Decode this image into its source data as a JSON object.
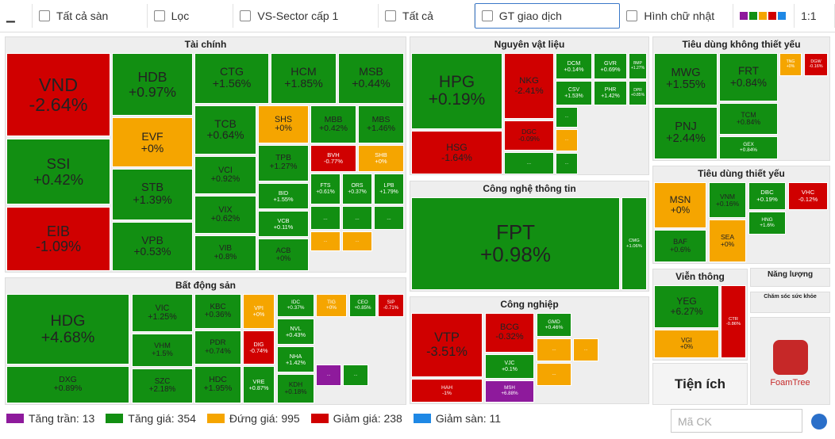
{
  "toolbar": {
    "items": [
      "Tất cả sàn",
      "Lọc",
      "VS-Sector cấp 1",
      "Tất cả",
      "GT giao dịch",
      "Hình chữ nhật",
      "1:1"
    ]
  },
  "sectors": [
    {
      "title": "Tài chính",
      "tiles": [
        {
          "ticker": "VND",
          "change": "-2.64%",
          "color": "#d00000"
        },
        {
          "ticker": "SSI",
          "change": "+0.42%",
          "color": "#128f12"
        },
        {
          "ticker": "EIB",
          "change": "-1.09%",
          "color": "#d00000"
        },
        {
          "ticker": "HDB",
          "change": "+0.97%",
          "color": "#128f12"
        },
        {
          "ticker": "EVF",
          "change": "+0%",
          "color": "#f5a500"
        },
        {
          "ticker": "STB",
          "change": "+1.39%",
          "color": "#128f12"
        },
        {
          "ticker": "VPB",
          "change": "+0.53%",
          "color": "#128f12"
        },
        {
          "ticker": "CTG",
          "change": "+1.56%",
          "color": "#128f12"
        },
        {
          "ticker": "HCM",
          "change": "+1.85%",
          "color": "#128f12"
        },
        {
          "ticker": "MSB",
          "change": "+0.44%",
          "color": "#128f12"
        },
        {
          "ticker": "TCB",
          "change": "+0.64%",
          "color": "#128f12"
        },
        {
          "ticker": "SHS",
          "change": "+0%",
          "color": "#f5a500"
        },
        {
          "ticker": "MBB",
          "change": "+0.42%",
          "color": "#128f12"
        },
        {
          "ticker": "MBS",
          "change": "+1.46%",
          "color": "#128f12"
        },
        {
          "ticker": "VCI",
          "change": "+0.92%",
          "color": "#128f12"
        },
        {
          "ticker": "VIX",
          "change": "+0.62%",
          "color": "#128f12"
        },
        {
          "ticker": "VIB",
          "change": "+0.8%",
          "color": "#128f12"
        },
        {
          "ticker": "TPB",
          "change": "+1.27%",
          "color": "#128f12"
        },
        {
          "ticker": "BVH",
          "change": "-0.77%",
          "color": "#d00000"
        },
        {
          "ticker": "SHB",
          "change": "+0%",
          "color": "#f5a500"
        },
        {
          "ticker": "BID",
          "change": "+1.55%",
          "color": "#128f12"
        },
        {
          "ticker": "VCB",
          "change": "+0.11%",
          "color": "#128f12"
        },
        {
          "ticker": "ACB",
          "change": "+0%",
          "color": "#128f12"
        },
        {
          "ticker": "FTS",
          "change": "+0.61%",
          "color": "#128f12"
        },
        {
          "ticker": "ORS",
          "change": "+0.37%",
          "color": "#128f12"
        },
        {
          "ticker": "LPB",
          "change": "+1.79%",
          "color": "#128f12"
        },
        {
          "ticker": "...",
          "color": "#128f12"
        },
        {
          "ticker": "...",
          "color": "#128f12"
        },
        {
          "ticker": "...",
          "color": "#128f12"
        },
        {
          "ticker": "...",
          "color": "#f5a500"
        },
        {
          "ticker": "...",
          "color": "#f5a500"
        }
      ]
    },
    {
      "title": "Nguyên vật liệu",
      "tiles": [
        {
          "ticker": "HPG",
          "change": "+0.19%",
          "color": "#128f12"
        },
        {
          "ticker": "HSG",
          "change": "-1.64%",
          "color": "#d00000"
        },
        {
          "ticker": "NKG",
          "change": "-2.41%",
          "color": "#d00000"
        },
        {
          "ticker": "DGC",
          "change": "-0.09%",
          "color": "#d00000"
        },
        {
          "ticker": "...",
          "color": "#128f12"
        },
        {
          "ticker": "DCM",
          "change": "+0.14%",
          "color": "#128f12"
        },
        {
          "ticker": "GVR",
          "change": "+0.69%",
          "color": "#128f12"
        },
        {
          "ticker": "BMP",
          "change": "+1.27%",
          "color": "#128f12"
        },
        {
          "ticker": "CSV",
          "change": "+1.53%",
          "color": "#128f12"
        },
        {
          "ticker": "PHR",
          "change": "+1.42%",
          "color": "#128f12"
        },
        {
          "ticker": "DPR",
          "change": "+0.85%",
          "color": "#128f12"
        },
        {
          "ticker": "...",
          "color": "#128f12"
        },
        {
          "ticker": "...",
          "color": "#f5a500"
        },
        {
          "ticker": "...",
          "color": "#128f12"
        }
      ]
    },
    {
      "title": "Công nghệ thông tin",
      "tiles": [
        {
          "ticker": "FPT",
          "change": "+0.98%",
          "color": "#128f12"
        },
        {
          "ticker": "CMG",
          "change": "+1.06%",
          "color": "#128f12"
        }
      ]
    },
    {
      "title": "Công nghiệp",
      "tiles": [
        {
          "ticker": "VTP",
          "change": "-3.51%",
          "color": "#d00000"
        },
        {
          "ticker": "HAH",
          "change": "-1%",
          "color": "#d00000"
        },
        {
          "ticker": "BCG",
          "change": "-0.32%",
          "color": "#d00000"
        },
        {
          "ticker": "VJC",
          "change": "+0.1%",
          "color": "#128f12"
        },
        {
          "ticker": "MSH",
          "change": "+6.88%",
          "color": "#8e1a9c"
        },
        {
          "ticker": "GMD",
          "change": "+0.46%",
          "color": "#128f12"
        },
        {
          "ticker": "...",
          "color": "#f5a500"
        },
        {
          "ticker": "...",
          "color": "#f5a500"
        },
        {
          "ticker": "...",
          "color": "#f5a500"
        }
      ]
    },
    {
      "title": "Tiêu dùng không thiết yếu",
      "tiles": [
        {
          "ticker": "MWG",
          "change": "+1.55%",
          "color": "#128f12"
        },
        {
          "ticker": "PNJ",
          "change": "+2.44%",
          "color": "#128f12"
        },
        {
          "ticker": "FRT",
          "change": "+0.84%",
          "color": "#128f12"
        },
        {
          "ticker": "TCM",
          "change": "+0.84%",
          "color": "#128f12"
        },
        {
          "ticker": "GEX",
          "change": "+0.84%",
          "color": "#128f12"
        },
        {
          "ticker": "TNG",
          "change": "+0%",
          "color": "#f5a500"
        },
        {
          "ticker": "DGW",
          "change": "-0.16%",
          "color": "#d00000"
        }
      ]
    },
    {
      "title": "Tiêu dùng thiết yếu",
      "tiles": [
        {
          "ticker": "MSN",
          "change": "+0%",
          "color": "#f5a500"
        },
        {
          "ticker": "BAF",
          "change": "+0.6%",
          "color": "#128f12"
        },
        {
          "ticker": "VNM",
          "change": "+0.16%",
          "color": "#128f12"
        },
        {
          "ticker": "SEA",
          "change": "+0%",
          "color": "#f5a500"
        },
        {
          "ticker": "DBC",
          "change": "+0.19%",
          "color": "#128f12"
        },
        {
          "ticker": "VHC",
          "change": "-0.12%",
          "color": "#d00000"
        },
        {
          "ticker": "HNG",
          "change": "+1.6%",
          "color": "#128f12"
        }
      ]
    },
    {
      "title": "Viễn thông",
      "tiles": [
        {
          "ticker": "YEG",
          "change": "+6.27%",
          "color": "#128f12"
        },
        {
          "ticker": "VGI",
          "change": "+0%",
          "color": "#f5a500"
        },
        {
          "ticker": "CTR",
          "change": "-0.86%",
          "color": "#d00000"
        }
      ]
    },
    {
      "title": "Năng lượng",
      "tiles": []
    },
    {
      "title": "Chăm sóc sức khỏe",
      "tiles": []
    },
    {
      "title": "Tiện ích",
      "tiles": []
    },
    {
      "title": "Bất động sản",
      "tiles": [
        {
          "ticker": "HDG",
          "change": "+4.68%",
          "color": "#128f12"
        },
        {
          "ticker": "DXG",
          "change": "+0.89%",
          "color": "#128f12"
        },
        {
          "ticker": "VIC",
          "change": "+1.25%",
          "color": "#128f12"
        },
        {
          "ticker": "VHM",
          "change": "+1.5%",
          "color": "#128f12"
        },
        {
          "ticker": "SZC",
          "change": "+2.18%",
          "color": "#128f12"
        },
        {
          "ticker": "KBC",
          "change": "+0.36%",
          "color": "#128f12"
        },
        {
          "ticker": "PDR",
          "change": "+0.74%",
          "color": "#128f12"
        },
        {
          "ticker": "HDC",
          "change": "+1.95%",
          "color": "#128f12"
        },
        {
          "ticker": "VPI",
          "change": "+0%",
          "color": "#f5a500"
        },
        {
          "ticker": "DIG",
          "change": "-0.74%",
          "color": "#d00000"
        },
        {
          "ticker": "VRE",
          "change": "+0.87%",
          "color": "#128f12"
        },
        {
          "ticker": "IDC",
          "change": "+0.37%",
          "color": "#128f12"
        },
        {
          "ticker": "NVL",
          "change": "+0.43%",
          "color": "#128f12"
        },
        {
          "ticker": "NHA",
          "change": "+1.42%",
          "color": "#128f12"
        },
        {
          "ticker": "KDH",
          "change": "+0.18%",
          "color": "#128f12"
        },
        {
          "ticker": "TIG",
          "change": "+0%",
          "color": "#f5a500"
        },
        {
          "ticker": "CEO",
          "change": "+0.85%",
          "color": "#128f12"
        },
        {
          "ticker": "SIP",
          "change": "-0.71%",
          "color": "#d00000"
        },
        {
          "ticker": "...",
          "color": "#8e1a9c"
        },
        {
          "ticker": "...",
          "color": "#128f12"
        }
      ]
    }
  ],
  "logo": "FoamTree",
  "legend": [
    {
      "label": "Tăng trần: 13",
      "color": "#8e1a9c"
    },
    {
      "label": "Tăng giá: 354",
      "color": "#128f12"
    },
    {
      "label": "Đứng giá: 995",
      "color": "#f5a500"
    },
    {
      "label": "Giảm giá: 238",
      "color": "#d00000"
    },
    {
      "label": "Giảm sàn: 11",
      "color": "#1e88e5"
    }
  ],
  "search": {
    "placeholder": "Mã CK"
  }
}
